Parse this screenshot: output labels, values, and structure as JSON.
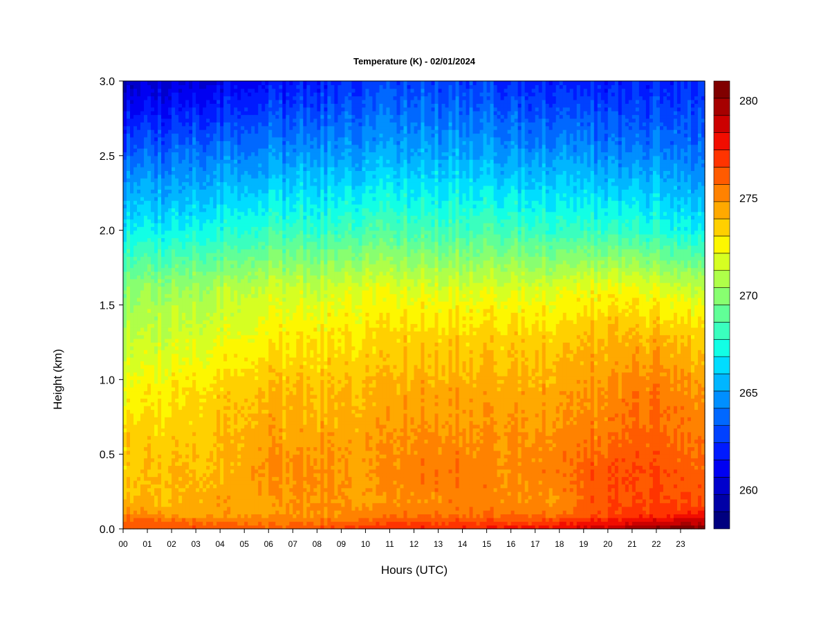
{
  "chart_data": {
    "type": "heatmap",
    "title": "Temperature (K) - 02/01/2024",
    "xlabel": "Hours (UTC)",
    "ylabel": "Height (km)",
    "xlim": [
      0,
      24
    ],
    "ylim": [
      0.0,
      3.0
    ],
    "x_ticks": [
      "00",
      "01",
      "02",
      "03",
      "04",
      "05",
      "06",
      "07",
      "08",
      "09",
      "10",
      "11",
      "12",
      "13",
      "14",
      "15",
      "16",
      "17",
      "18",
      "19",
      "20",
      "21",
      "22",
      "23"
    ],
    "y_ticks": [
      "0.0",
      "0.5",
      "1.0",
      "1.5",
      "2.0",
      "2.5",
      "3.0"
    ],
    "colorbar": {
      "min": 258,
      "max": 281,
      "ticks": [
        "260",
        "265",
        "270",
        "275",
        "280"
      ],
      "colors": [
        "#00007f",
        "#0000a6",
        "#0000cc",
        "#0000f2",
        "#001aff",
        "#0041ff",
        "#0068ff",
        "#008fff",
        "#00b6ff",
        "#00ddff",
        "#12ffe5",
        "#3affbe",
        "#61ff97",
        "#88ff70",
        "#afff49",
        "#d6ff22",
        "#fdf700",
        "#ffd000",
        "#ffa900",
        "#ff8200",
        "#ff5b00",
        "#ff3400",
        "#f20d00",
        "#cc0000",
        "#a60000",
        "#800000"
      ]
    },
    "grid": false,
    "heights_km": [
      0.0,
      0.05,
      0.1,
      0.2,
      0.4,
      0.6,
      0.9,
      1.3,
      1.6,
      2.0,
      2.5,
      3.0
    ],
    "hours": [
      0,
      2,
      4,
      6,
      8,
      10,
      12,
      14,
      16,
      18,
      20,
      21,
      22,
      23.9
    ],
    "values": [
      [
        276.5,
        276.5,
        276.5,
        276.0,
        276.5,
        277.0,
        277.5,
        277.5,
        278.0,
        278.0,
        279.0,
        280.0,
        280.5,
        281.0
      ],
      [
        276.0,
        276.0,
        275.5,
        275.5,
        275.5,
        276.0,
        276.5,
        276.5,
        276.5,
        277.0,
        278.0,
        278.0,
        278.5,
        279.0
      ],
      [
        275.0,
        274.5,
        274.5,
        274.5,
        275.0,
        275.0,
        275.5,
        275.5,
        275.5,
        275.5,
        276.5,
        277.0,
        277.0,
        277.5
      ],
      [
        274.0,
        274.0,
        274.5,
        274.5,
        275.0,
        274.5,
        275.0,
        275.5,
        275.0,
        275.0,
        276.5,
        276.5,
        276.5,
        276.5
      ],
      [
        273.5,
        274.0,
        274.0,
        275.0,
        275.0,
        274.5,
        275.5,
        275.5,
        275.0,
        275.5,
        276.5,
        276.5,
        276.5,
        276.0
      ],
      [
        273.5,
        273.5,
        274.0,
        274.5,
        274.5,
        274.5,
        275.0,
        275.0,
        275.0,
        275.0,
        275.5,
        276.0,
        276.0,
        275.5
      ],
      [
        272.5,
        273.0,
        273.5,
        274.0,
        274.0,
        274.0,
        274.5,
        274.5,
        274.5,
        274.5,
        275.0,
        275.5,
        275.5,
        275.0
      ],
      [
        271.0,
        271.5,
        272.0,
        272.5,
        273.0,
        273.0,
        273.5,
        273.5,
        273.5,
        273.5,
        274.0,
        274.0,
        274.0,
        273.5
      ],
      [
        270.0,
        270.5,
        271.0,
        271.5,
        271.5,
        272.0,
        272.0,
        272.0,
        272.0,
        272.0,
        272.5,
        272.5,
        272.0,
        271.5
      ],
      [
        267.0,
        267.0,
        267.5,
        268.0,
        268.0,
        268.5,
        268.5,
        268.5,
        268.5,
        268.0,
        268.0,
        268.0,
        267.5,
        267.0
      ],
      [
        263.5,
        264.0,
        264.5,
        264.5,
        265.0,
        265.0,
        265.5,
        265.5,
        265.0,
        265.0,
        264.5,
        264.5,
        264.5,
        264.0
      ],
      [
        260.0,
        260.5,
        261.0,
        261.5,
        262.0,
        262.5,
        263.0,
        263.0,
        262.5,
        262.0,
        262.0,
        262.0,
        262.0,
        262.5
      ]
    ]
  }
}
